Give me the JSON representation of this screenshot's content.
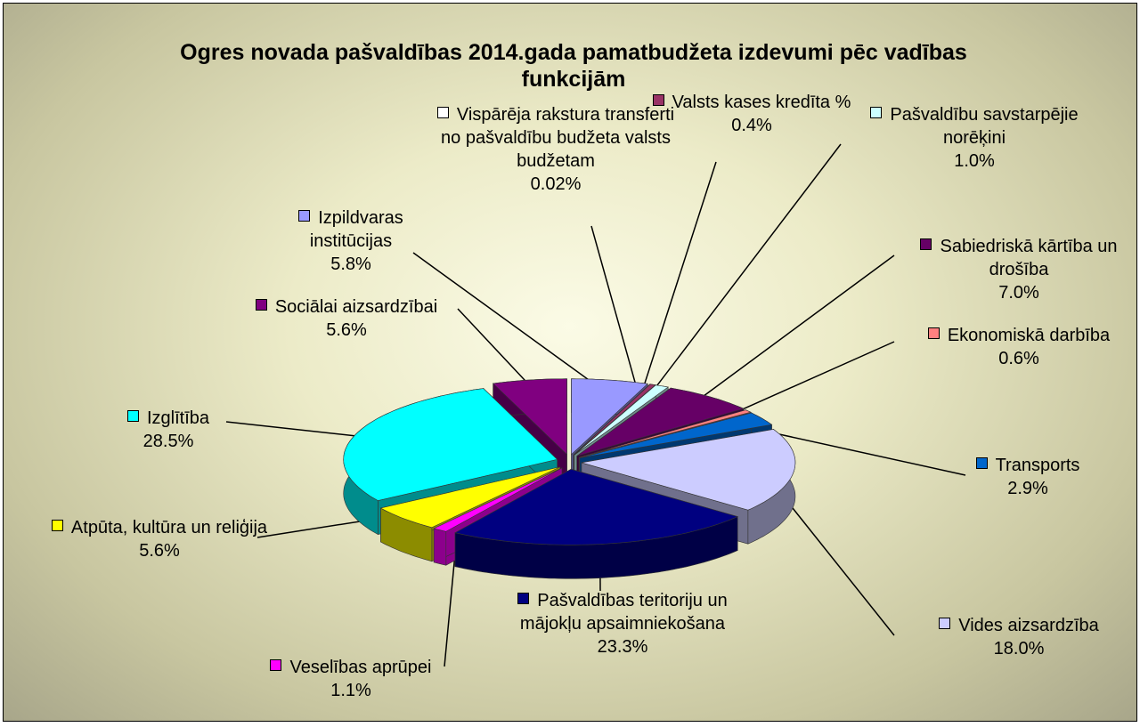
{
  "chart_data": {
    "type": "pie",
    "title": "Ogres novada pašvaldības 2014.gada pamatbudžeta izdevumi pēc vadības funkcijām",
    "categories": [
      "Izpildvaras institūcijas",
      "Vispārēja rakstura transferti no pašvaldību budžeta valsts budžetam",
      "Valsts kases kredīta %",
      "Pašvaldību savstarpējie norēķini",
      "Sabiedriskā kārtība un drošība",
      "Ekonomiskā darbība",
      "Transports",
      "Vides aizsardzība",
      "Pašvaldības teritoriju un mājokļu apsaimniekošana",
      "Veselības aprūpei",
      "Atpūta, kultūra un reliģija",
      "Izglītība",
      "Sociālai aizsardzībai"
    ],
    "values": [
      5.8,
      0.02,
      0.4,
      1.0,
      7.0,
      0.6,
      2.9,
      18.0,
      23.3,
      1.1,
      5.6,
      28.5,
      5.6
    ],
    "value_labels": [
      "5.8%",
      "0.02%",
      "0.4%",
      "1.0%",
      "7.0%",
      "0.6%",
      "2.9%",
      "18.0%",
      "23.3%",
      "1.1%",
      "5.6%",
      "28.5%",
      "5.6%"
    ],
    "colors": [
      "#9999ff",
      "#ffffff",
      "#993366",
      "#ccffff",
      "#660066",
      "#ff8080",
      "#0066cc",
      "#ccccff",
      "#000080",
      "#ff00ff",
      "#ffff00",
      "#00ffff",
      "#800080"
    ]
  }
}
